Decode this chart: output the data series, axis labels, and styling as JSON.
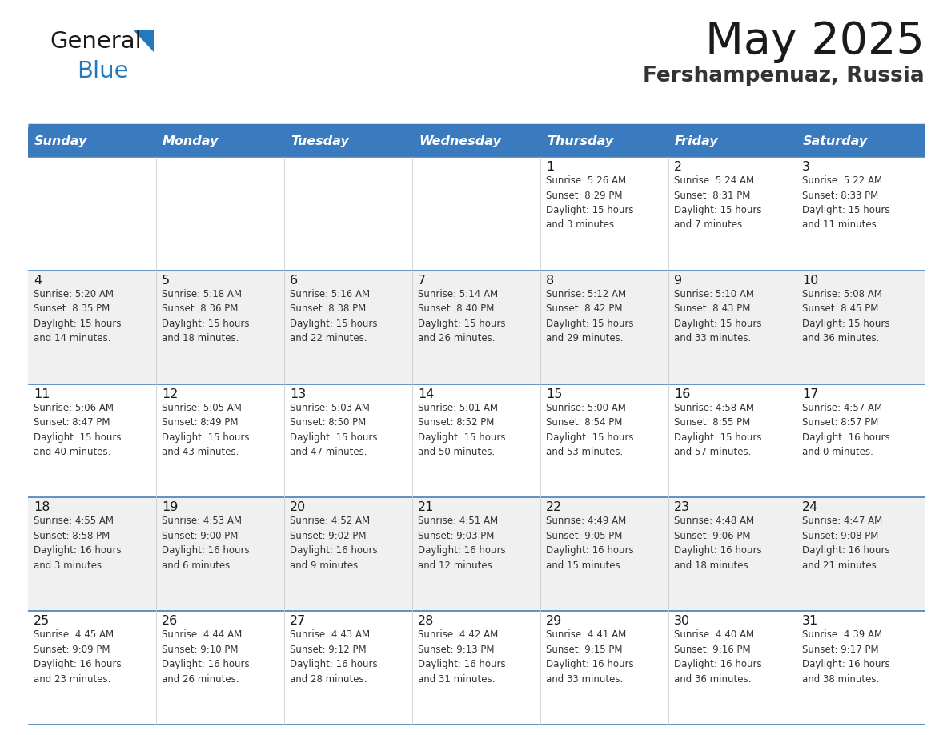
{
  "title": "May 2025",
  "subtitle": "Fershampenuaz, Russia",
  "days_of_week": [
    "Sunday",
    "Monday",
    "Tuesday",
    "Wednesday",
    "Thursday",
    "Friday",
    "Saturday"
  ],
  "header_bg": "#3a7abf",
  "header_text": "#ffffff",
  "cell_bg_odd": "#f0f0f0",
  "cell_bg_even": "#ffffff",
  "cell_border": "#3a7abf",
  "row_border": "#4a7fb5",
  "day_num_color": "#1a1a1a",
  "cell_text_color": "#333333",
  "title_color": "#1a1a1a",
  "subtitle_color": "#333333",
  "logo_general_color": "#1a1a1a",
  "logo_blue_color": "#2479bc",
  "weeks": [
    [
      {
        "day": null,
        "info": null
      },
      {
        "day": null,
        "info": null
      },
      {
        "day": null,
        "info": null
      },
      {
        "day": null,
        "info": null
      },
      {
        "day": 1,
        "info": "Sunrise: 5:26 AM\nSunset: 8:29 PM\nDaylight: 15 hours\nand 3 minutes."
      },
      {
        "day": 2,
        "info": "Sunrise: 5:24 AM\nSunset: 8:31 PM\nDaylight: 15 hours\nand 7 minutes."
      },
      {
        "day": 3,
        "info": "Sunrise: 5:22 AM\nSunset: 8:33 PM\nDaylight: 15 hours\nand 11 minutes."
      }
    ],
    [
      {
        "day": 4,
        "info": "Sunrise: 5:20 AM\nSunset: 8:35 PM\nDaylight: 15 hours\nand 14 minutes."
      },
      {
        "day": 5,
        "info": "Sunrise: 5:18 AM\nSunset: 8:36 PM\nDaylight: 15 hours\nand 18 minutes."
      },
      {
        "day": 6,
        "info": "Sunrise: 5:16 AM\nSunset: 8:38 PM\nDaylight: 15 hours\nand 22 minutes."
      },
      {
        "day": 7,
        "info": "Sunrise: 5:14 AM\nSunset: 8:40 PM\nDaylight: 15 hours\nand 26 minutes."
      },
      {
        "day": 8,
        "info": "Sunrise: 5:12 AM\nSunset: 8:42 PM\nDaylight: 15 hours\nand 29 minutes."
      },
      {
        "day": 9,
        "info": "Sunrise: 5:10 AM\nSunset: 8:43 PM\nDaylight: 15 hours\nand 33 minutes."
      },
      {
        "day": 10,
        "info": "Sunrise: 5:08 AM\nSunset: 8:45 PM\nDaylight: 15 hours\nand 36 minutes."
      }
    ],
    [
      {
        "day": 11,
        "info": "Sunrise: 5:06 AM\nSunset: 8:47 PM\nDaylight: 15 hours\nand 40 minutes."
      },
      {
        "day": 12,
        "info": "Sunrise: 5:05 AM\nSunset: 8:49 PM\nDaylight: 15 hours\nand 43 minutes."
      },
      {
        "day": 13,
        "info": "Sunrise: 5:03 AM\nSunset: 8:50 PM\nDaylight: 15 hours\nand 47 minutes."
      },
      {
        "day": 14,
        "info": "Sunrise: 5:01 AM\nSunset: 8:52 PM\nDaylight: 15 hours\nand 50 minutes."
      },
      {
        "day": 15,
        "info": "Sunrise: 5:00 AM\nSunset: 8:54 PM\nDaylight: 15 hours\nand 53 minutes."
      },
      {
        "day": 16,
        "info": "Sunrise: 4:58 AM\nSunset: 8:55 PM\nDaylight: 15 hours\nand 57 minutes."
      },
      {
        "day": 17,
        "info": "Sunrise: 4:57 AM\nSunset: 8:57 PM\nDaylight: 16 hours\nand 0 minutes."
      }
    ],
    [
      {
        "day": 18,
        "info": "Sunrise: 4:55 AM\nSunset: 8:58 PM\nDaylight: 16 hours\nand 3 minutes."
      },
      {
        "day": 19,
        "info": "Sunrise: 4:53 AM\nSunset: 9:00 PM\nDaylight: 16 hours\nand 6 minutes."
      },
      {
        "day": 20,
        "info": "Sunrise: 4:52 AM\nSunset: 9:02 PM\nDaylight: 16 hours\nand 9 minutes."
      },
      {
        "day": 21,
        "info": "Sunrise: 4:51 AM\nSunset: 9:03 PM\nDaylight: 16 hours\nand 12 minutes."
      },
      {
        "day": 22,
        "info": "Sunrise: 4:49 AM\nSunset: 9:05 PM\nDaylight: 16 hours\nand 15 minutes."
      },
      {
        "day": 23,
        "info": "Sunrise: 4:48 AM\nSunset: 9:06 PM\nDaylight: 16 hours\nand 18 minutes."
      },
      {
        "day": 24,
        "info": "Sunrise: 4:47 AM\nSunset: 9:08 PM\nDaylight: 16 hours\nand 21 minutes."
      }
    ],
    [
      {
        "day": 25,
        "info": "Sunrise: 4:45 AM\nSunset: 9:09 PM\nDaylight: 16 hours\nand 23 minutes."
      },
      {
        "day": 26,
        "info": "Sunrise: 4:44 AM\nSunset: 9:10 PM\nDaylight: 16 hours\nand 26 minutes."
      },
      {
        "day": 27,
        "info": "Sunrise: 4:43 AM\nSunset: 9:12 PM\nDaylight: 16 hours\nand 28 minutes."
      },
      {
        "day": 28,
        "info": "Sunrise: 4:42 AM\nSunset: 9:13 PM\nDaylight: 16 hours\nand 31 minutes."
      },
      {
        "day": 29,
        "info": "Sunrise: 4:41 AM\nSunset: 9:15 PM\nDaylight: 16 hours\nand 33 minutes."
      },
      {
        "day": 30,
        "info": "Sunrise: 4:40 AM\nSunset: 9:16 PM\nDaylight: 16 hours\nand 36 minutes."
      },
      {
        "day": 31,
        "info": "Sunrise: 4:39 AM\nSunset: 9:17 PM\nDaylight: 16 hours\nand 38 minutes."
      }
    ]
  ]
}
